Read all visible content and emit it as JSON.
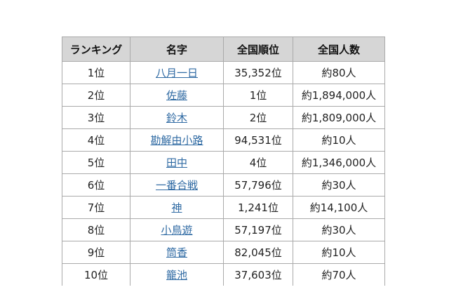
{
  "table": {
    "headers": [
      "ランキング",
      "名字",
      "全国順位",
      "全国人数"
    ],
    "rows": [
      {
        "rank": "1位",
        "name": "八月一日",
        "national_rank": "35,352位",
        "count": "約80人"
      },
      {
        "rank": "2位",
        "name": "佐藤",
        "national_rank": "1位",
        "count": "約1,894,000人"
      },
      {
        "rank": "3位",
        "name": "鈴木",
        "national_rank": "2位",
        "count": "約1,809,000人"
      },
      {
        "rank": "4位",
        "name": "勘解由小路",
        "national_rank": "94,531位",
        "count": "約10人"
      },
      {
        "rank": "5位",
        "name": "田中",
        "national_rank": "4位",
        "count": "約1,346,000人"
      },
      {
        "rank": "6位",
        "name": "一番合戦",
        "national_rank": "57,796位",
        "count": "約30人"
      },
      {
        "rank": "7位",
        "name": "神",
        "national_rank": "1,241位",
        "count": "約14,100人"
      },
      {
        "rank": "8位",
        "name": "小鳥遊",
        "national_rank": "57,197位",
        "count": "約30人"
      },
      {
        "rank": "9位",
        "name": "筒香",
        "national_rank": "82,045位",
        "count": "約10人"
      },
      {
        "rank": "10位",
        "name": "籠池",
        "national_rank": "37,603位",
        "count": "約70人"
      }
    ]
  },
  "colors": {
    "header_bg": "#d6d6d6",
    "link": "#2f6aa3",
    "border": "#aaaaaa"
  }
}
